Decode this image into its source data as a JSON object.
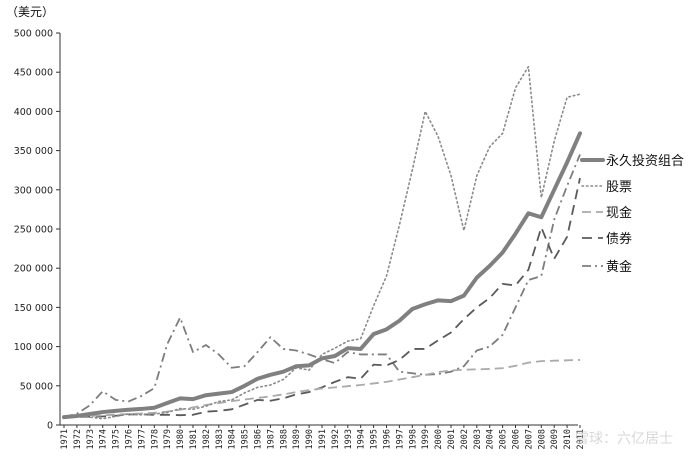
{
  "chart_data": {
    "type": "line",
    "unit_label": "（美元）",
    "watermark": "雪球：六亿居士",
    "ylim": [
      0,
      500000
    ],
    "y_ticks": [
      0,
      50000,
      100000,
      150000,
      200000,
      250000,
      300000,
      350000,
      400000,
      450000,
      500000
    ],
    "y_tick_labels": [
      "0",
      "50 000",
      "100 000",
      "150 000",
      "200 000",
      "250 000",
      "300 000",
      "350 000",
      "400 000",
      "450 000",
      "500 000"
    ],
    "x": [
      1971,
      1972,
      1973,
      1974,
      1975,
      1976,
      1977,
      1978,
      1979,
      1980,
      1981,
      1982,
      1983,
      1984,
      1985,
      1986,
      1987,
      1988,
      1989,
      1990,
      1991,
      1992,
      1993,
      1994,
      1995,
      1996,
      1997,
      1998,
      1999,
      2000,
      2001,
      2002,
      2003,
      2004,
      2005,
      2006,
      2007,
      2008,
      2009,
      2010,
      2011
    ],
    "x_tick_labels": [
      "1971",
      "1972",
      "1973",
      "1974",
      "1975",
      "1976",
      "1977",
      "1978",
      "1979",
      "1980",
      "1981",
      "1982",
      "1983",
      "1984",
      "1985",
      "1986",
      "1987",
      "1988",
      "1989",
      "1990",
      "1991",
      "1992",
      "1993",
      "1994",
      "1995",
      "1996",
      "1997",
      "1998",
      "1999",
      "2000",
      "2001",
      "2002",
      "2003",
      "2004",
      "2005",
      "2006",
      "2007",
      "2008",
      "2009",
      "2010",
      "2011"
    ],
    "grid": false,
    "legend_position": "right",
    "series": [
      {
        "name": "永久投资组合",
        "style": "solid-thick",
        "color": "#808080",
        "values": [
          10000,
          11500,
          14000,
          16500,
          18000,
          19500,
          20500,
          22000,
          28000,
          34000,
          33000,
          38000,
          40000,
          42000,
          50000,
          59000,
          64000,
          68000,
          75000,
          76000,
          85000,
          88000,
          98000,
          97000,
          116000,
          122000,
          133000,
          148000,
          154000,
          159000,
          158000,
          165000,
          188000,
          203000,
          220000,
          244000,
          270000,
          265000,
          300000,
          335000,
          372000
        ]
      },
      {
        "name": "股票",
        "style": "dotted",
        "color": "#8a8a8a",
        "values": [
          10000,
          12000,
          10000,
          8000,
          11000,
          14000,
          13000,
          14000,
          16000,
          21000,
          20000,
          24000,
          30000,
          32000,
          41000,
          48000,
          51000,
          58000,
          73000,
          70000,
          90000,
          98000,
          107000,
          110000,
          152000,
          190000,
          255000,
          325000,
          400000,
          368000,
          318000,
          248000,
          318000,
          355000,
          372000,
          430000,
          457000,
          290000,
          362000,
          418000,
          422000
        ]
      },
      {
        "name": "现金",
        "style": "long-dash-light",
        "color": "#aaaaaa",
        "values": [
          10000,
          10600,
          11300,
          12300,
          13200,
          14000,
          14700,
          15600,
          17000,
          19500,
          22500,
          25500,
          28000,
          30500,
          32500,
          34500,
          36500,
          39000,
          42000,
          44500,
          46500,
          48000,
          49500,
          51000,
          53000,
          55000,
          58000,
          61000,
          64000,
          67500,
          69500,
          70500,
          71000,
          71500,
          72500,
          75500,
          79500,
          81500,
          82000,
          82500,
          83000
        ]
      },
      {
        "name": "债券",
        "style": "dashed",
        "color": "#5a5a5a",
        "values": [
          10000,
          10400,
          10600,
          11000,
          11800,
          13500,
          13700,
          13000,
          13000,
          12500,
          13000,
          17000,
          18000,
          20000,
          26000,
          32000,
          31000,
          34000,
          39000,
          42000,
          48000,
          55000,
          61000,
          59000,
          77000,
          76000,
          83000,
          97000,
          97000,
          108000,
          118000,
          135000,
          150000,
          162000,
          180000,
          178000,
          198000,
          252000,
          212000,
          240000,
          315000
        ]
      },
      {
        "name": "黄金",
        "style": "dash-dot",
        "color": "#7d7d7d",
        "values": [
          10000,
          14500,
          25000,
          43000,
          32000,
          30000,
          37000,
          47000,
          103000,
          137000,
          93000,
          102000,
          90000,
          73000,
          75000,
          93000,
          112000,
          97000,
          95000,
          90000,
          84000,
          79000,
          93000,
          90000,
          90000,
          90000,
          68000,
          66000,
          64000,
          65000,
          68000,
          75000,
          95000,
          100000,
          115000,
          150000,
          185000,
          190000,
          262000,
          305000,
          345000
        ]
      }
    ]
  }
}
